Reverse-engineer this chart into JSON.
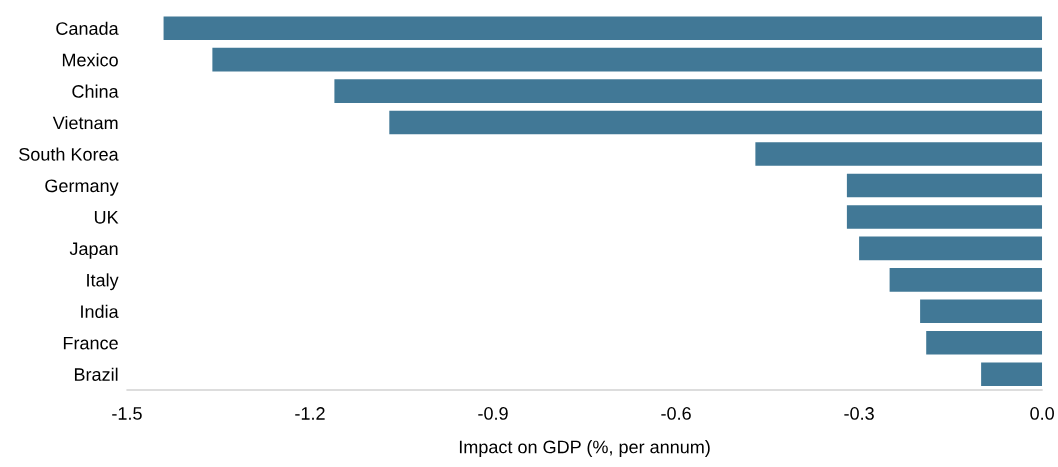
{
  "chart_data": {
    "type": "bar",
    "orientation": "horizontal",
    "xlabel": "Impact on GDP (%, per annum)",
    "categories": [
      "Canada",
      "Mexico",
      "China",
      "Vietnam",
      "South Korea",
      "Germany",
      "UK",
      "Japan",
      "Italy",
      "India",
      "France",
      "Brazil"
    ],
    "values": [
      -1.44,
      -1.36,
      -1.16,
      -1.07,
      -0.47,
      -0.32,
      -0.32,
      -0.3,
      -0.25,
      -0.2,
      -0.19,
      -0.1
    ],
    "color": "#417896",
    "xlim": [
      -1.5,
      0.0
    ],
    "xticks": [
      -1.5,
      -1.2,
      -0.9,
      -0.6,
      -0.3,
      {
        "value": 0,
        "label": "0.0"
      }
    ],
    "grid": false
  }
}
